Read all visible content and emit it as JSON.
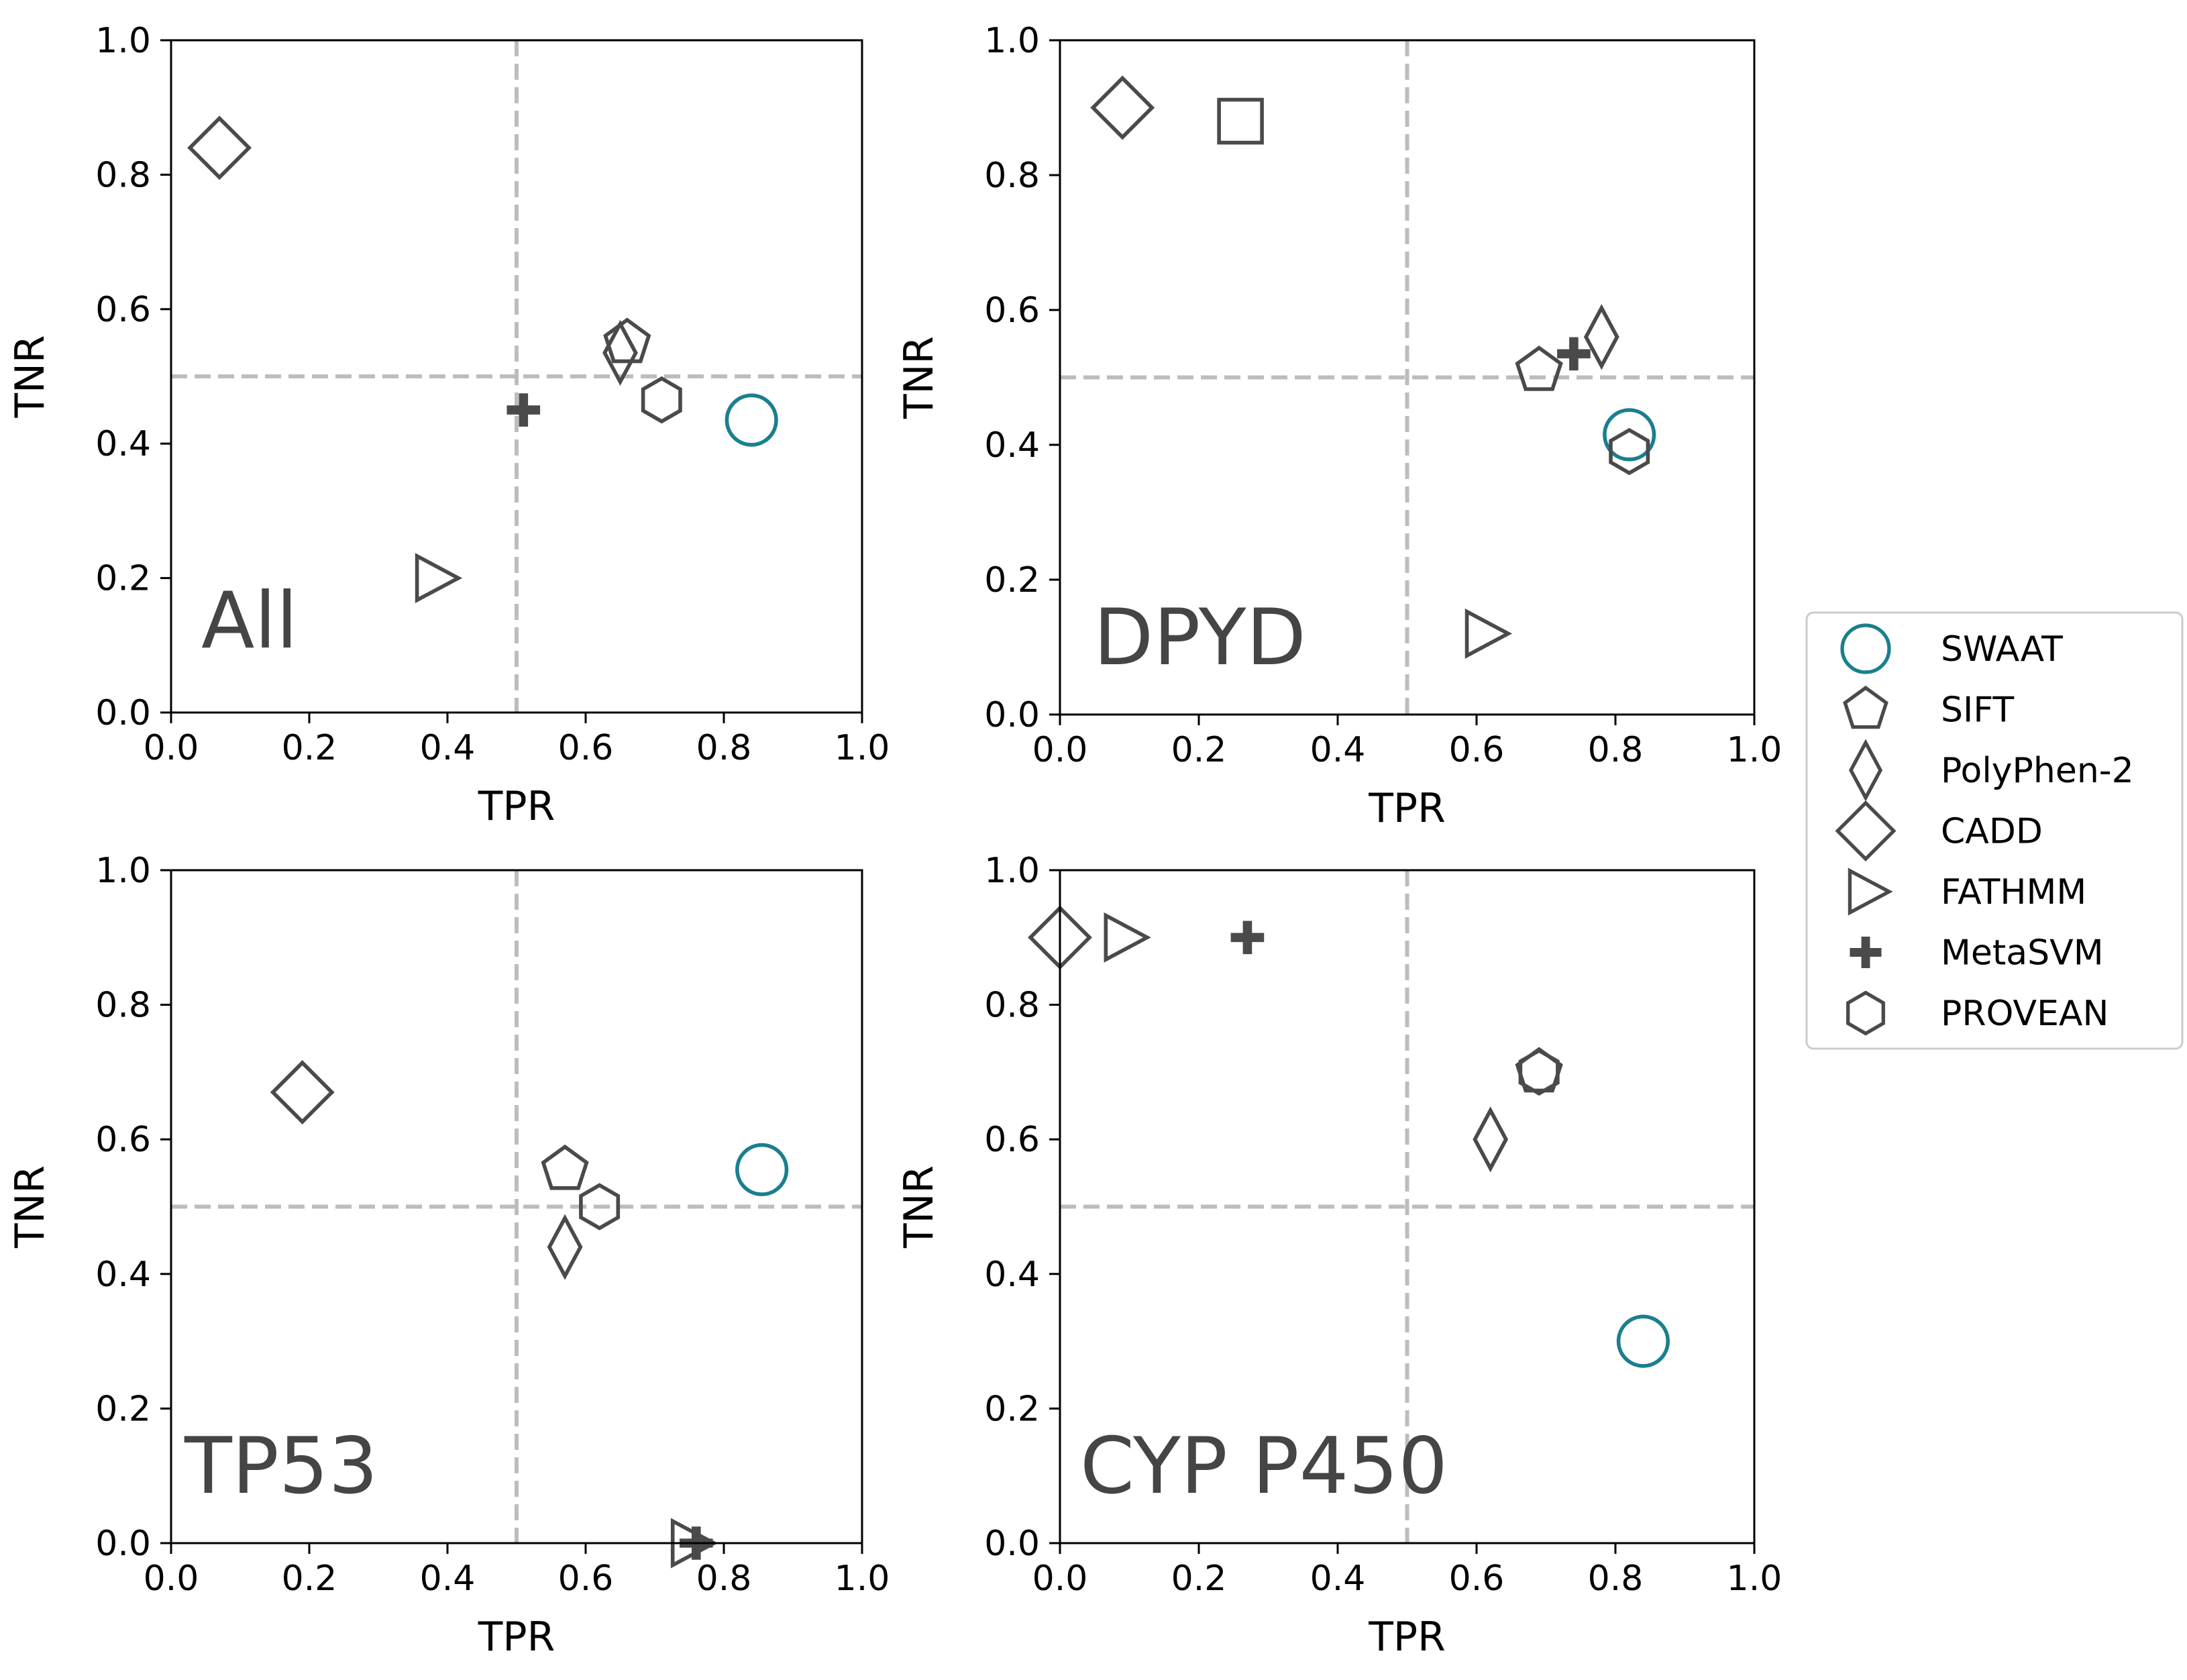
{
  "colors": {
    "swaat": "#1a7f8e",
    "marker": "#4a4a4a",
    "guide": "#bdbdbd",
    "axis": "#000000",
    "legend_border": "#cccccc"
  },
  "legend": {
    "entries": [
      {
        "key": "swaat",
        "label": "SWAAT",
        "marker": "circle-icon"
      },
      {
        "key": "sift",
        "label": "SIFT",
        "marker": "pentagon-icon"
      },
      {
        "key": "polyphen2",
        "label": "PolyPhen-2",
        "marker": "thin-diamond-icon"
      },
      {
        "key": "cadd",
        "label": "CADD",
        "marker": "diamond-icon"
      },
      {
        "key": "fathmm",
        "label": "FATHMM",
        "marker": "triangle-right-icon"
      },
      {
        "key": "metasvm",
        "label": "MetaSVM",
        "marker": "plus-icon"
      },
      {
        "key": "provean",
        "label": "PROVEAN",
        "marker": "hexagon-icon"
      }
    ]
  },
  "chart_data": [
    {
      "type": "scatter",
      "title": "All",
      "xlabel": "TPR",
      "ylabel": "TNR",
      "xlim": [
        0,
        1
      ],
      "ylim": [
        0,
        1
      ],
      "ticks": [
        "0.0",
        "0.2",
        "0.4",
        "0.6",
        "0.8",
        "1.0"
      ],
      "reference_lines": {
        "x": 0.5,
        "y": 0.5
      },
      "points": [
        {
          "method": "SWAAT",
          "marker": "circle",
          "x": 0.84,
          "y": 0.435
        },
        {
          "method": "SIFT",
          "marker": "pentagon",
          "x": 0.66,
          "y": 0.55
        },
        {
          "method": "PolyPhen-2",
          "marker": "thin_diamond",
          "x": 0.65,
          "y": 0.535
        },
        {
          "method": "CADD",
          "marker": "diamond",
          "x": 0.07,
          "y": 0.84
        },
        {
          "method": "FATHMM",
          "marker": "triangle_right",
          "x": 0.38,
          "y": 0.2
        },
        {
          "method": "MetaSVM",
          "marker": "plus",
          "x": 0.51,
          "y": 0.45
        },
        {
          "method": "PROVEAN",
          "marker": "hexagon",
          "x": 0.71,
          "y": 0.465
        }
      ]
    },
    {
      "type": "scatter",
      "title": "DPYD",
      "xlabel": "TPR",
      "ylabel": "TNR",
      "xlim": [
        0,
        1
      ],
      "ylim": [
        0,
        1
      ],
      "ticks": [
        "0.0",
        "0.2",
        "0.4",
        "0.6",
        "0.8",
        "1.0"
      ],
      "reference_lines": {
        "x": 0.5,
        "y": 0.5
      },
      "points": [
        {
          "method": "SWAAT",
          "marker": "circle",
          "x": 0.82,
          "y": 0.415
        },
        {
          "method": "SIFT",
          "marker": "pentagon",
          "x": 0.69,
          "y": 0.51
        },
        {
          "method": "PolyPhen-2",
          "marker": "thin_diamond",
          "x": 0.78,
          "y": 0.56
        },
        {
          "method": "CADD",
          "marker": "diamond",
          "x": 0.09,
          "y": 0.9
        },
        {
          "method": "FATHMM",
          "marker": "triangle_right",
          "x": 0.61,
          "y": 0.12
        },
        {
          "method": "MetaSVM",
          "marker": "plus",
          "x": 0.74,
          "y": 0.535
        },
        {
          "method": "PROVEAN",
          "marker": "hexagon",
          "x": 0.82,
          "y": 0.39
        },
        {
          "method": "",
          "marker": "square",
          "x": 0.26,
          "y": 0.88
        }
      ]
    },
    {
      "type": "scatter",
      "title": "TP53",
      "xlabel": "TPR",
      "ylabel": "TNR",
      "xlim": [
        0,
        1
      ],
      "ylim": [
        0,
        1
      ],
      "ticks": [
        "0.0",
        "0.2",
        "0.4",
        "0.6",
        "0.8",
        "1.0"
      ],
      "reference_lines": {
        "x": 0.5,
        "y": 0.5
      },
      "points": [
        {
          "method": "SWAAT",
          "marker": "circle",
          "x": 0.855,
          "y": 0.555
        },
        {
          "method": "SIFT",
          "marker": "pentagon",
          "x": 0.57,
          "y": 0.555
        },
        {
          "method": "PolyPhen-2",
          "marker": "thin_diamond",
          "x": 0.57,
          "y": 0.44
        },
        {
          "method": "CADD",
          "marker": "diamond",
          "x": 0.19,
          "y": 0.67
        },
        {
          "method": "FATHMM",
          "marker": "triangle_right",
          "x": 0.75,
          "y": 0.0
        },
        {
          "method": "MetaSVM",
          "marker": "plus",
          "x": 0.76,
          "y": 0.0
        },
        {
          "method": "PROVEAN",
          "marker": "hexagon",
          "x": 0.62,
          "y": 0.5
        }
      ]
    },
    {
      "type": "scatter",
      "title": "CYP P450",
      "xlabel": "TPR",
      "ylabel": "TNR",
      "xlim": [
        0,
        1
      ],
      "ylim": [
        0,
        1
      ],
      "ticks": [
        "0.0",
        "0.2",
        "0.4",
        "0.6",
        "0.8",
        "1.0"
      ],
      "reference_lines": {
        "x": 0.5,
        "y": 0.5
      },
      "points": [
        {
          "method": "SWAAT",
          "marker": "circle",
          "x": 0.84,
          "y": 0.3
        },
        {
          "method": "SIFT",
          "marker": "pentagon",
          "x": 0.69,
          "y": 0.7
        },
        {
          "method": "PolyPhen-2",
          "marker": "thin_diamond",
          "x": 0.62,
          "y": 0.6
        },
        {
          "method": "CADD",
          "marker": "diamond",
          "x": 0.0,
          "y": 0.9
        },
        {
          "method": "FATHMM",
          "marker": "triangle_right",
          "x": 0.09,
          "y": 0.9
        },
        {
          "method": "MetaSVM",
          "marker": "plus",
          "x": 0.27,
          "y": 0.9
        },
        {
          "method": "PROVEAN",
          "marker": "hexagon",
          "x": 0.69,
          "y": 0.7
        }
      ]
    }
  ]
}
